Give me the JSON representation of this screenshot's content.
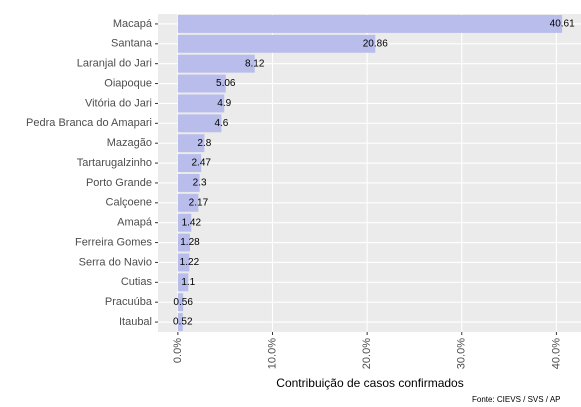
{
  "chart_data": {
    "type": "bar",
    "orientation": "horizontal",
    "x_label": "Contribuição de casos confirmados",
    "caption": "Fonte: CIEVS / SVS / AP",
    "categories": [
      "Macapá",
      "Santana",
      "Laranjal do Jari",
      "Oiapoque",
      "Vitória do Jari",
      "Pedra Branca do Amapari",
      "Mazagão",
      "Tartarugalzinho",
      "Porto Grande",
      "Calçoene",
      "Amapá",
      "Ferreira Gomes",
      "Serra do Navio",
      "Cutias",
      "Pracuúba",
      "Itaubal"
    ],
    "values": [
      40.61,
      20.86,
      8.12,
      5.06,
      4.9,
      4.6,
      2.8,
      2.47,
      2.3,
      2.17,
      1.42,
      1.28,
      1.22,
      1.1,
      0.56,
      0.52
    ],
    "color": "#b8bdeb",
    "xlim": [
      -2.1,
      42.6
    ],
    "xticks": [
      {
        "value": 0,
        "label": "0.0%"
      },
      {
        "value": 10,
        "label": "10.0%"
      },
      {
        "value": 20,
        "label": "20.0%"
      },
      {
        "value": 30,
        "label": "30.0%"
      },
      {
        "value": 40,
        "label": "40.0%"
      }
    ],
    "grid": true
  }
}
